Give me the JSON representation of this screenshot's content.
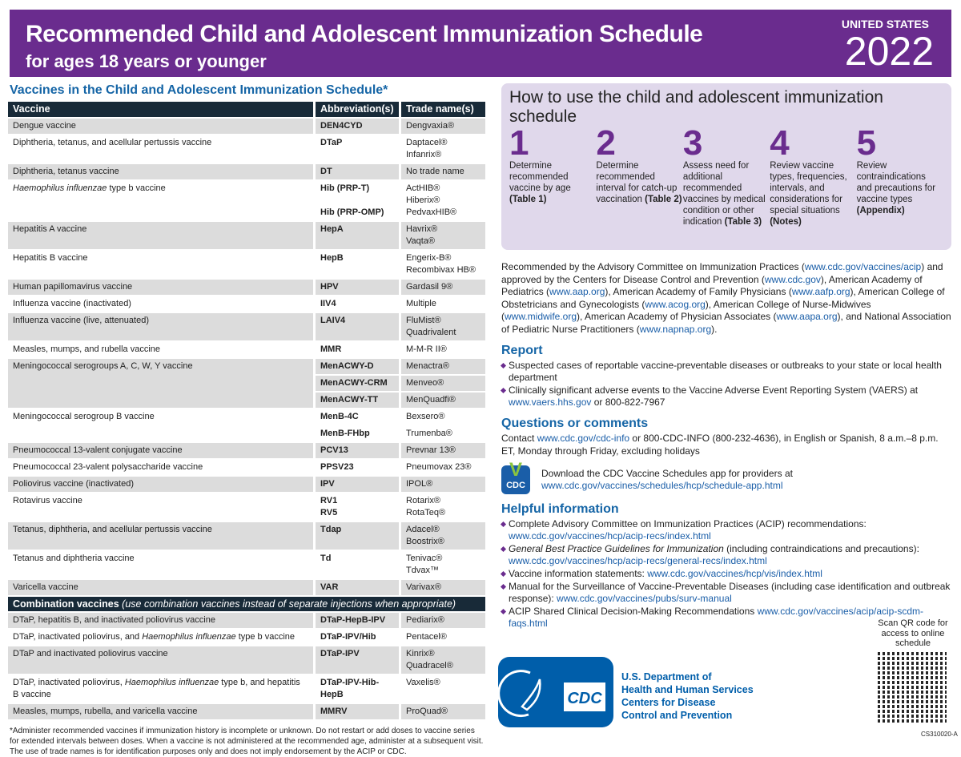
{
  "header": {
    "title": "Recommended Child and Adolescent Immunization Schedule",
    "subtitle": "for ages 18 years or younger",
    "country": "UNITED STATES",
    "year": "2022",
    "bg": "#6a2c8e"
  },
  "table": {
    "title": "Vaccines in the Child and Adolescent Immunization Schedule*",
    "columns": [
      "Vaccine",
      "Abbreviation(s)",
      "Trade name(s)"
    ],
    "rows": [
      {
        "vaccine": "Dengue vaccine",
        "items": [
          {
            "abbr": [
              "DEN4CYD"
            ],
            "trade": [
              "Dengvaxia®"
            ]
          }
        ]
      },
      {
        "vaccine": "Diphtheria, tetanus, and acellular pertussis vaccine",
        "items": [
          {
            "abbr": [
              "DTaP"
            ],
            "trade": [
              "Daptacel®",
              "Infanrix®"
            ]
          }
        ]
      },
      {
        "vaccine": "Diphtheria, tetanus vaccine",
        "items": [
          {
            "abbr": [
              "DT"
            ],
            "trade": [
              "No trade name"
            ]
          }
        ]
      },
      {
        "vaccine": "Haemophilus influenzae type b vaccine",
        "italic": "Haemophilus influenzae",
        "items": [
          {
            "abbr": [
              "Hib (PRP-T)",
              "",
              "Hib (PRP-OMP)"
            ],
            "trade": [
              "ActHIB®",
              "Hiberix®",
              "PedvaxHIB®"
            ]
          }
        ]
      },
      {
        "vaccine": "Hepatitis A vaccine",
        "items": [
          {
            "abbr": [
              "HepA"
            ],
            "trade": [
              "Havrix®",
              "Vaqta®"
            ]
          }
        ]
      },
      {
        "vaccine": "Hepatitis B vaccine",
        "items": [
          {
            "abbr": [
              "HepB"
            ],
            "trade": [
              "Engerix-B®",
              "Recombivax HB®"
            ]
          }
        ]
      },
      {
        "vaccine": "Human papillomavirus vaccine",
        "items": [
          {
            "abbr": [
              "HPV"
            ],
            "trade": [
              "Gardasil 9®"
            ]
          }
        ]
      },
      {
        "vaccine": "Influenza vaccine (inactivated)",
        "items": [
          {
            "abbr": [
              "IIV4"
            ],
            "trade": [
              "Multiple"
            ]
          }
        ]
      },
      {
        "vaccine": "Influenza vaccine (live, attenuated)",
        "items": [
          {
            "abbr": [
              "LAIV4"
            ],
            "trade": [
              "FluMist® Quadrivalent"
            ]
          }
        ]
      },
      {
        "vaccine": "Measles, mumps, and rubella vaccine",
        "items": [
          {
            "abbr": [
              "MMR"
            ],
            "trade": [
              "M-M-R II®"
            ]
          }
        ]
      },
      {
        "vaccine": "Meningococcal serogroups A, C, W, Y vaccine",
        "items": [
          {
            "abbr": [
              "MenACWY-D"
            ],
            "trade": [
              "Menactra®"
            ]
          },
          {
            "abbr": [
              "MenACWY-CRM"
            ],
            "trade": [
              "Menveo®"
            ]
          },
          {
            "abbr": [
              "MenACWY-TT"
            ],
            "trade": [
              "MenQuadfi®"
            ]
          }
        ]
      },
      {
        "vaccine": "Meningococcal serogroup B vaccine",
        "items": [
          {
            "abbr": [
              "MenB-4C"
            ],
            "trade": [
              "Bexsero®"
            ]
          },
          {
            "abbr": [
              "MenB-FHbp"
            ],
            "trade": [
              "Trumenba®"
            ]
          }
        ]
      },
      {
        "vaccine": "Pneumococcal 13-valent conjugate vaccine",
        "items": [
          {
            "abbr": [
              "PCV13"
            ],
            "trade": [
              "Prevnar 13®"
            ]
          }
        ]
      },
      {
        "vaccine": "Pneumococcal 23-valent polysaccharide vaccine",
        "items": [
          {
            "abbr": [
              "PPSV23"
            ],
            "trade": [
              "Pneumovax 23®"
            ]
          }
        ]
      },
      {
        "vaccine": "Poliovirus vaccine (inactivated)",
        "items": [
          {
            "abbr": [
              "IPV"
            ],
            "trade": [
              "IPOL®"
            ]
          }
        ]
      },
      {
        "vaccine": "Rotavirus vaccine",
        "items": [
          {
            "abbr": [
              "RV1",
              "RV5"
            ],
            "trade": [
              "Rotarix®",
              "RotaTeq®"
            ]
          }
        ]
      },
      {
        "vaccine": "Tetanus, diphtheria, and acellular pertussis vaccine",
        "items": [
          {
            "abbr": [
              "Tdap"
            ],
            "trade": [
              "Adacel®",
              "Boostrix®"
            ]
          }
        ]
      },
      {
        "vaccine": "Tetanus and diphtheria vaccine",
        "items": [
          {
            "abbr": [
              "Td"
            ],
            "trade": [
              "Tenivac®",
              "Tdvax™"
            ]
          }
        ]
      },
      {
        "vaccine": "Varicella vaccine",
        "items": [
          {
            "abbr": [
              "VAR"
            ],
            "trade": [
              "Varivax®"
            ]
          }
        ]
      }
    ],
    "combo_title": "Combination vaccines",
    "combo_note": "(use combination vaccines instead of separate injections when appropriate)",
    "combo_rows": [
      {
        "vaccine": "DTaP, hepatitis B, and inactivated poliovirus vaccine",
        "items": [
          {
            "abbr": [
              "DTaP-HepB-IPV"
            ],
            "trade": [
              "Pediarix®"
            ]
          }
        ]
      },
      {
        "vaccine": "DTaP, inactivated poliovirus, and Haemophilus influenzae type b vaccine",
        "italic": "Haemophilus influenzae",
        "items": [
          {
            "abbr": [
              "DTaP-IPV/Hib"
            ],
            "trade": [
              "Pentacel®"
            ]
          }
        ]
      },
      {
        "vaccine": "DTaP and inactivated poliovirus vaccine",
        "items": [
          {
            "abbr": [
              "DTaP-IPV"
            ],
            "trade": [
              "Kinrix®",
              "Quadracel®"
            ]
          }
        ]
      },
      {
        "vaccine": "DTaP, inactivated poliovirus, Haemophilus influenzae type b, and hepatitis B vaccine",
        "italic": "Haemophilus influenzae",
        "items": [
          {
            "abbr": [
              "DTaP-IPV-Hib-HepB"
            ],
            "trade": [
              "Vaxelis®"
            ]
          }
        ]
      },
      {
        "vaccine": "Measles, mumps, rubella, and varicella vaccine",
        "items": [
          {
            "abbr": [
              "MMRV"
            ],
            "trade": [
              "ProQuad®"
            ]
          }
        ]
      }
    ],
    "footnote": "*Administer recommended vaccines if immunization history is incomplete or unknown. Do not restart or add doses to vaccine series for extended intervals between doses. When a vaccine is not administered at the recommended age, administer at a subsequent visit. The use of trade names is for identification purposes only and does not imply endorsement by the ACIP or CDC."
  },
  "how_to": {
    "title": "How to use the child and adolescent immunization schedule",
    "steps": [
      {
        "num": "1",
        "text": "Determine recommended vaccine by age ",
        "ref": "(Table 1)"
      },
      {
        "num": "2",
        "text": "Determine recommended interval for catch-up vaccination ",
        "ref": "(Table 2)"
      },
      {
        "num": "3",
        "text": "Assess need for additional recommended vaccines by medical condition or other indication ",
        "ref": "(Table 3)"
      },
      {
        "num": "4",
        "text": "Review vaccine types, frequencies, intervals, and considerations for special situations ",
        "ref": "(Notes)"
      },
      {
        "num": "5",
        "text": "Review contraindications and precautions for vaccine types ",
        "ref": "(Appendix)"
      }
    ]
  },
  "recommended": [
    {
      "t": "Recommended by the Advisory Committee on Immunization Practices ("
    },
    {
      "t": "www.cdc.gov/vaccines/acip",
      "l": 1
    },
    {
      "t": ") and approved by the Centers for Disease Control and Prevention ("
    },
    {
      "t": "www.cdc.gov",
      "l": 1
    },
    {
      "t": "), American Academy of Pediatrics ("
    },
    {
      "t": "www.aap.org",
      "l": 1
    },
    {
      "t": "), American Academy of Family Physicians ("
    },
    {
      "t": "www.aafp.org",
      "l": 1
    },
    {
      "t": "), American College of Obstetricians and Gynecologists ("
    },
    {
      "t": "www.acog.org",
      "l": 1
    },
    {
      "t": "), American College of Nurse-Midwives ("
    },
    {
      "t": "www.midwife.org",
      "l": 1
    },
    {
      "t": "), American Academy of Physician Associates ("
    },
    {
      "t": "www.aapa.org",
      "l": 1
    },
    {
      "t": "), and National Association of Pediatric Nurse Practitioners ("
    },
    {
      "t": "www.napnap.org",
      "l": 1
    },
    {
      "t": ")."
    }
  ],
  "report": {
    "title": "Report",
    "items": [
      [
        {
          "t": "Suspected cases of reportable vaccine-preventable diseases or outbreaks to your state or local health department"
        }
      ],
      [
        {
          "t": "Clinically significant adverse events to the Vaccine Adverse Event Reporting System (VAERS) at "
        },
        {
          "t": "www.vaers.hhs.gov",
          "l": 1
        },
        {
          "t": " or 800-822-7967"
        }
      ]
    ]
  },
  "questions": {
    "title": "Questions or comments",
    "text": [
      {
        "t": "Contact "
      },
      {
        "t": "www.cdc.gov/cdc-info",
        "l": 1
      },
      {
        "t": " or 800-CDC-INFO (800-232-4636), in English or Spanish, 8 a.m.–8 p.m. ET, Monday through Friday, excluding holidays"
      }
    ]
  },
  "app": {
    "icon_label": "CDC",
    "text": "Download the CDC Vaccine Schedules app for providers at",
    "link": "www.cdc.gov/vaccines/schedules/hcp/schedule-app.html"
  },
  "helpful": {
    "title": "Helpful information",
    "items": [
      [
        {
          "t": "Complete Advisory Committee on Immunization Practices (ACIP) recommendations: "
        },
        {
          "t": "www.cdc.gov/vaccines/hcp/acip-recs/index.html",
          "l": 1
        }
      ],
      [
        {
          "t": "General Best Practice Guidelines for Immunization",
          "i": 1
        },
        {
          "t": " (including contraindications and precautions): "
        },
        {
          "t": "www.cdc.gov/vaccines/hcp/acip-recs/general-recs/index.html",
          "l": 1
        }
      ],
      [
        {
          "t": "Vaccine information statements: "
        },
        {
          "t": "www.cdc.gov/vaccines/hcp/vis/index.html",
          "l": 1
        }
      ],
      [
        {
          "t": "Manual for the Surveillance of Vaccine-Preventable Diseases (including case identification and outbreak response): "
        },
        {
          "t": "www.cdc.gov/vaccines/pubs/surv-manual",
          "l": 1
        }
      ],
      [
        {
          "t": "ACIP Shared Clinical Decision-Making Recommendations "
        },
        {
          "t": "www.cdc.gov/vaccines/acip/acip-scdm-faqs.html",
          "l": 1
        }
      ]
    ]
  },
  "agency": {
    "line1": "U.S. Department of",
    "line2": "Health and Human Services",
    "line3": "Centers for Disease",
    "line4": "Control and Prevention",
    "logo_text": "CDC",
    "color": "#005eaa"
  },
  "qr": {
    "caption": "Scan QR code for access to online schedule"
  },
  "doc_code": "CS310020-A"
}
